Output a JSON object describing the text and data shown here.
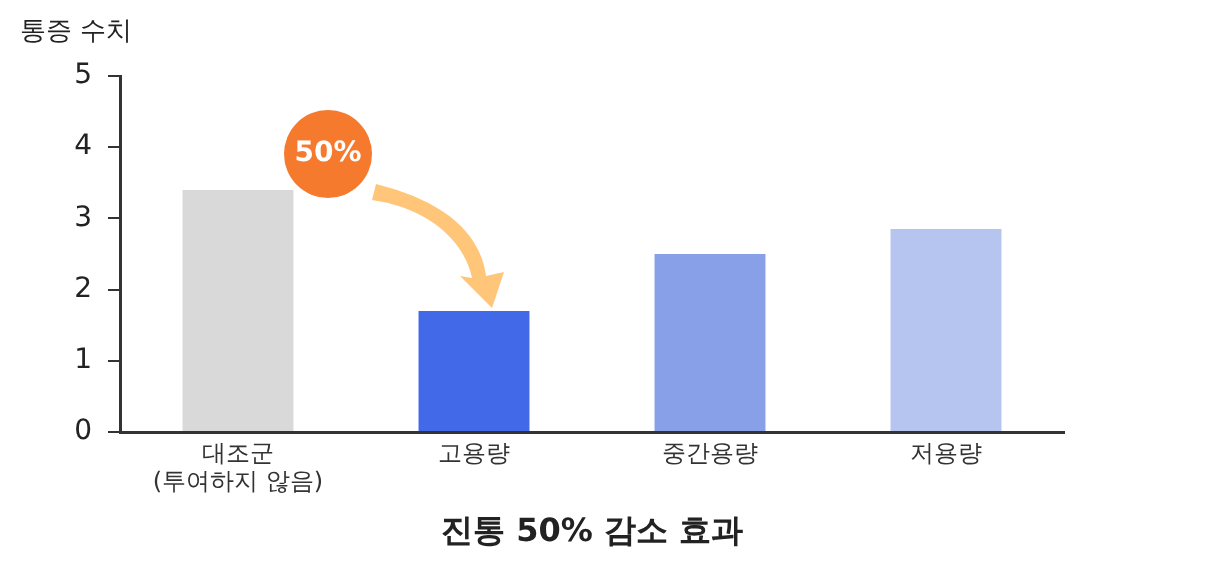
{
  "chart_data": {
    "type": "bar",
    "xlabel": "진통 50% 감소 효과",
    "ylabel": "통증 수치",
    "categories": [
      "대조군\n(투여하지 않음)",
      "고용량",
      "중간용량",
      "저용량"
    ],
    "values": [
      3.4,
      1.7,
      2.5,
      2.85
    ],
    "colors": [
      "#d9d9d9",
      "#4169e8",
      "#88a0e8",
      "#b6c4f0"
    ],
    "ylim": [
      0,
      5
    ],
    "yticks": [
      0,
      1,
      2,
      3,
      4,
      5
    ],
    "grid": false,
    "legend": false,
    "annotations": [
      "50%"
    ]
  }
}
